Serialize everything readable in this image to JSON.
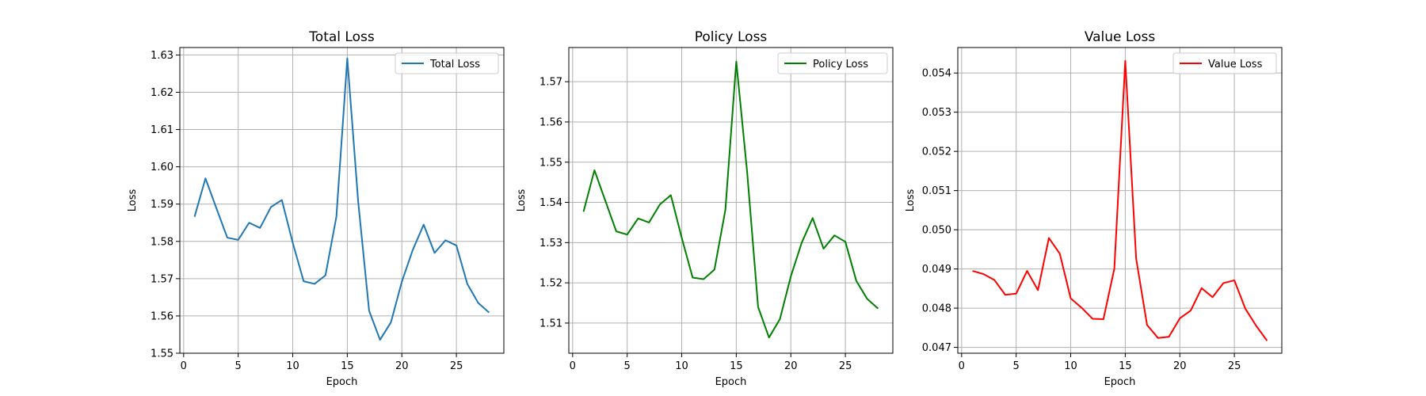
{
  "chart_data": [
    {
      "type": "line",
      "title": "Total Loss",
      "xlabel": "Epoch",
      "ylabel": "Loss",
      "xlim": [
        -0.35,
        29.35
      ],
      "ylim": [
        1.55,
        1.632
      ],
      "xticks": [
        0,
        5,
        10,
        15,
        20,
        25
      ],
      "yticks": [
        1.55,
        1.56,
        1.57,
        1.58,
        1.59,
        1.6,
        1.61,
        1.62,
        1.63
      ],
      "ytick_decimals": 2,
      "grid": true,
      "legend": "top-right",
      "series": [
        {
          "name": "Total Loss",
          "color": "#1f77b4",
          "x": [
            1,
            2,
            3,
            4,
            5,
            6,
            7,
            8,
            9,
            10,
            11,
            12,
            13,
            14,
            15,
            16,
            17,
            18,
            19,
            20,
            21,
            22,
            23,
            24,
            25,
            26,
            27,
            28
          ],
          "y": [
            1.5866,
            1.5969,
            1.5889,
            1.581,
            1.5804,
            1.585,
            1.5836,
            1.5892,
            1.5911,
            1.5796,
            1.5693,
            1.5686,
            1.5709,
            1.5866,
            1.6291,
            1.5906,
            1.5614,
            1.5536,
            1.5583,
            1.5692,
            1.5777,
            1.5845,
            1.5769,
            1.5803,
            1.5789,
            1.5686,
            1.5635,
            1.5609
          ]
        }
      ]
    },
    {
      "type": "line",
      "title": "Policy Loss",
      "xlabel": "Epoch",
      "ylabel": "Loss",
      "xlim": [
        -0.35,
        29.35
      ],
      "ylim": [
        1.5025,
        1.5785
      ],
      "xticks": [
        0,
        5,
        10,
        15,
        20,
        25
      ],
      "yticks": [
        1.51,
        1.52,
        1.53,
        1.54,
        1.55,
        1.56,
        1.57
      ],
      "ytick_decimals": 2,
      "grid": true,
      "legend": "top-right",
      "series": [
        {
          "name": "Policy Loss",
          "color": "#008000",
          "x": [
            1,
            2,
            3,
            4,
            5,
            6,
            7,
            8,
            9,
            10,
            11,
            12,
            13,
            14,
            15,
            16,
            17,
            18,
            19,
            20,
            21,
            22,
            23,
            24,
            25,
            26,
            27,
            28
          ],
          "y": [
            1.5377,
            1.548,
            1.5404,
            1.5328,
            1.532,
            1.536,
            1.535,
            1.5395,
            1.5418,
            1.5312,
            1.5213,
            1.5209,
            1.5233,
            1.5381,
            1.575,
            1.5474,
            1.514,
            1.5064,
            1.511,
            1.5216,
            1.53,
            1.5361,
            1.5285,
            1.5318,
            1.5302,
            1.5205,
            1.516,
            1.5136
          ]
        }
      ]
    },
    {
      "type": "line",
      "title": "Value Loss",
      "xlabel": "Epoch",
      "ylabel": "Loss",
      "xlim": [
        -0.35,
        29.35
      ],
      "ylim": [
        0.04685,
        0.05465
      ],
      "xticks": [
        0,
        5,
        10,
        15,
        20,
        25
      ],
      "yticks": [
        0.047,
        0.048,
        0.049,
        0.05,
        0.051,
        0.052,
        0.053,
        0.054
      ],
      "ytick_decimals": 3,
      "grid": true,
      "legend": "top-right",
      "series": [
        {
          "name": "Value Loss",
          "color": "#ff0000",
          "x": [
            1,
            2,
            3,
            4,
            5,
            6,
            7,
            8,
            9,
            10,
            11,
            12,
            13,
            14,
            15,
            16,
            17,
            18,
            19,
            20,
            21,
            22,
            23,
            24,
            25,
            26,
            27,
            28
          ],
          "y": [
            0.04895,
            0.04887,
            0.04872,
            0.04834,
            0.04837,
            0.04895,
            0.04846,
            0.04979,
            0.04939,
            0.04825,
            0.04801,
            0.04773,
            0.04772,
            0.04901,
            0.05431,
            0.04926,
            0.04757,
            0.04724,
            0.04727,
            0.04774,
            0.04794,
            0.04851,
            0.04828,
            0.04864,
            0.04871,
            0.04799,
            0.04755,
            0.04717
          ]
        }
      ]
    }
  ]
}
